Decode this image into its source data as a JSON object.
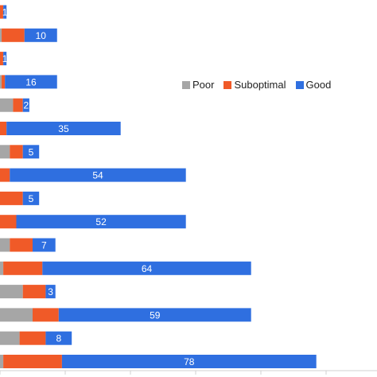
{
  "chart_data": {
    "type": "bar",
    "orientation": "horizontal",
    "stacked": true,
    "title": "",
    "xlabel": "",
    "ylabel": "",
    "xlim": [
      0,
      100
    ],
    "grid": false,
    "legend_position": "right",
    "colors": {
      "Poor": "#a6a6a6",
      "Suboptimal": "#f05a28",
      "Good": "#2f6fe0"
    },
    "series": [
      {
        "name": "Poor",
        "values": [
          0,
          0.5,
          0,
          0.5,
          4,
          0,
          3,
          0,
          0,
          0,
          3,
          1,
          7,
          10,
          6,
          1
        ]
      },
      {
        "name": "Suboptimal",
        "values": [
          1,
          7,
          1,
          1,
          3,
          2,
          4,
          3,
          7,
          5,
          7,
          12,
          7,
          8,
          8,
          18
        ]
      },
      {
        "name": "Good",
        "values": [
          1,
          10,
          1,
          16,
          2,
          35,
          5,
          54,
          5,
          52,
          7,
          64,
          3,
          59,
          8,
          78
        ]
      }
    ],
    "data_labels": [
      "1",
      "10",
      "1",
      "16",
      "2",
      "35",
      "5",
      "54",
      "5",
      "52",
      "7",
      "64",
      "3",
      "59",
      "8",
      "78"
    ]
  }
}
